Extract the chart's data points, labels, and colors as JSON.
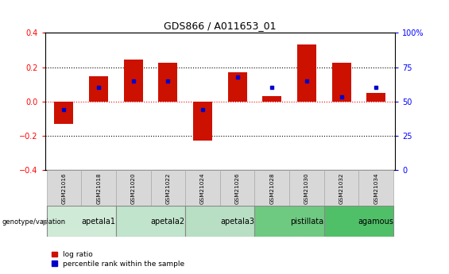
{
  "title": "GDS866 / A011653_01",
  "samples": [
    "GSM21016",
    "GSM21018",
    "GSM21020",
    "GSM21022",
    "GSM21024",
    "GSM21026",
    "GSM21028",
    "GSM21030",
    "GSM21032",
    "GSM21034"
  ],
  "log_ratio": [
    -0.13,
    0.145,
    0.245,
    0.225,
    -0.23,
    0.17,
    0.03,
    0.33,
    0.225,
    0.05
  ],
  "percentile_rank": [
    44,
    60,
    65,
    65,
    44,
    68,
    60,
    65,
    53,
    60
  ],
  "groups": [
    {
      "name": "apetala1",
      "start": 0,
      "end": 2,
      "color": "#d0ead8"
    },
    {
      "name": "apetala2",
      "start": 2,
      "end": 4,
      "color": "#c0e4cc"
    },
    {
      "name": "apetala3",
      "start": 4,
      "end": 6,
      "color": "#b8dfc4"
    },
    {
      "name": "pistillata",
      "start": 6,
      "end": 8,
      "color": "#6eca80"
    },
    {
      "name": "agamous",
      "start": 8,
      "end": 10,
      "color": "#50c068"
    }
  ],
  "bar_color": "#cc1100",
  "dot_color": "#0000cc",
  "ylim_left": [
    -0.4,
    0.4
  ],
  "ylim_right": [
    0,
    100
  ],
  "yticks_left": [
    -0.4,
    -0.2,
    0.0,
    0.2,
    0.4
  ],
  "yticks_right": [
    0,
    25,
    50,
    75,
    100
  ],
  "ytick_labels_right": [
    "0",
    "25",
    "50",
    "75",
    "100%"
  ],
  "hline_red": 0.0,
  "hlines_black": [
    -0.2,
    0.2
  ],
  "background_color": "#ffffff",
  "legend_red": "log ratio",
  "legend_blue": "percentile rank within the sample",
  "sample_box_color": "#d8d8d8",
  "sample_box_edge": "#aaaaaa"
}
